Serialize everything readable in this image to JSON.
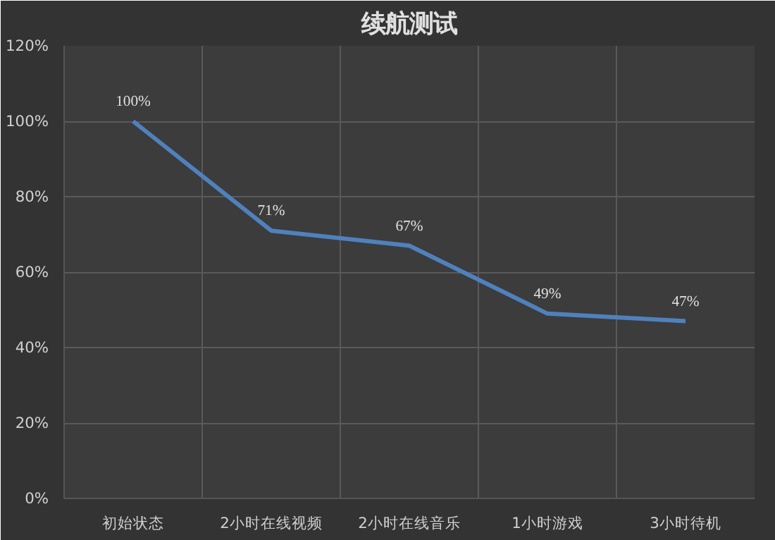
{
  "chart_data": {
    "type": "line",
    "title": "续航测试",
    "categories": [
      "初始状态",
      "2小时在线视频",
      "2小时在线音乐",
      "1小时游戏",
      "3小时待机"
    ],
    "series": [
      {
        "color": "#4f81bd",
        "values": [
          100,
          71,
          67,
          49,
          47
        ],
        "value_labels": [
          "100%",
          "71%",
          "67%",
          "49%",
          "47%"
        ]
      }
    ],
    "ylim": [
      0,
      120
    ],
    "yticks": [
      {
        "value": 0,
        "label": "0%"
      },
      {
        "value": 20,
        "label": "20%"
      },
      {
        "value": 40,
        "label": "40%"
      },
      {
        "value": 60,
        "label": "60%"
      },
      {
        "value": 80,
        "label": "80%"
      },
      {
        "value": 100,
        "label": "100%"
      },
      {
        "value": 120,
        "label": "120%"
      }
    ],
    "grid": true,
    "marker": "none",
    "line_style": "solid"
  }
}
